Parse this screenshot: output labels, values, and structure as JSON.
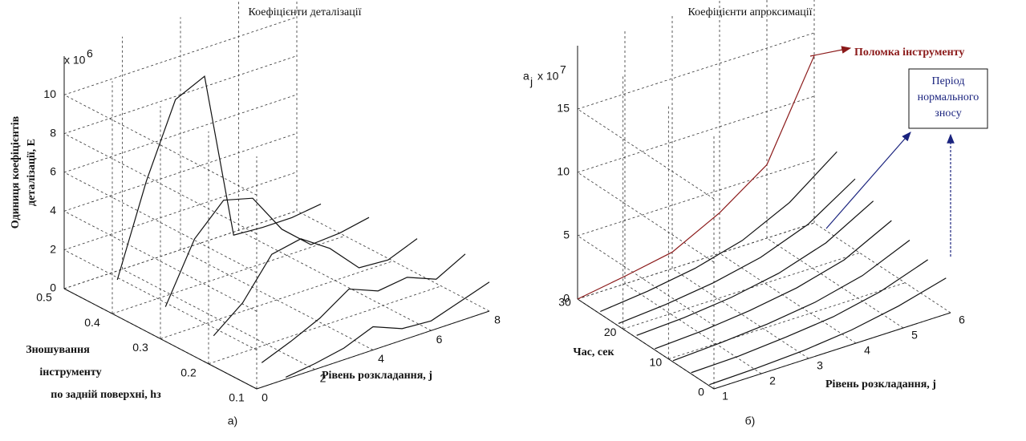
{
  "chart_data": [
    {
      "type": "line3d",
      "title": "Коефіцієнти деталізації",
      "caption": "а)",
      "zlabel": [
        "Одиниця коефіцієнтів",
        "деталізації, E"
      ],
      "ylabel": [
        "Зношування",
        "інструменту",
        "по задній поверхні, hз"
      ],
      "xlabel": "Рівень розкладання, j",
      "exponent": "x 10",
      "exponent_power": "6",
      "xlim": [
        0,
        8
      ],
      "ylim": [
        0.1,
        0.5
      ],
      "zlim": [
        0,
        12
      ],
      "xticks": [
        0,
        2,
        4,
        6,
        8
      ],
      "yticks": [
        0.1,
        0.2,
        0.3,
        0.4,
        0.5
      ],
      "zticks": [
        0,
        2,
        4,
        6,
        8,
        10
      ],
      "grid": true,
      "x": [
        1,
        2,
        3,
        4,
        5,
        6,
        7,
        8
      ],
      "series": [
        {
          "y": 0.45,
          "color": "#111111",
          "values": [
            0.6,
            5.2,
            8.9,
            9.6,
            0.9,
            0.8,
            0.8,
            1.0
          ]
        },
        {
          "y": 0.35,
          "color": "#111111",
          "values": [
            0.5,
            3.5,
            5,
            4.6,
            2.5,
            1.2,
            1.3,
            1.6
          ]
        },
        {
          "y": 0.25,
          "color": "#111111",
          "values": [
            0.3,
            1.5,
            3.5,
            3.8,
            2.8,
            1.3,
            1.2,
            1.8
          ]
        },
        {
          "y": 0.15,
          "color": "#111111",
          "values": [
            0.2,
            0.8,
            1.5,
            2.5,
            1.9,
            2.1,
            1.5,
            2.3
          ]
        },
        {
          "y": 0.1,
          "color": "#111111",
          "values": [
            0.1,
            0.3,
            0.6,
            1.2,
            0.6,
            0.5,
            1.0,
            1.5
          ]
        }
      ]
    },
    {
      "type": "line3d",
      "title": "Коефіцієнти апроксимації",
      "caption": "б)",
      "zlabel": "a",
      "zlabel_sub": "j",
      "ylabel": "Час, сек",
      "xlabel": "Рівень розкладання, j",
      "exponent": "x 10",
      "exponent_power": "7",
      "annotations": [
        "Поломка інструменту",
        "Період",
        "нормального",
        "зносу"
      ],
      "xlim": [
        1,
        6
      ],
      "ylim": [
        0,
        30
      ],
      "zlim": [
        0,
        20
      ],
      "xticks": [
        1,
        2,
        3,
        4,
        5,
        6
      ],
      "yticks": [
        0,
        10,
        20,
        30
      ],
      "zticks": [
        0,
        5,
        10,
        15
      ],
      "grid": true,
      "x": [
        1,
        2,
        3,
        4,
        5,
        6
      ],
      "series": [
        {
          "y": 30,
          "color": "#8b1a1a",
          "values": [
            0,
            0.6,
            1.3,
            3.2,
            5.8,
            13.2
          ]
        },
        {
          "y": 25,
          "color": "#111111",
          "values": [
            0.2,
            0.6,
            1.2,
            2.2,
            4,
            6.8
          ]
        },
        {
          "y": 21,
          "color": "#111111",
          "values": [
            0.2,
            0.5,
            1,
            1.8,
            3.2,
            5.6
          ]
        },
        {
          "y": 17,
          "color": "#111111",
          "values": [
            0.2,
            0.4,
            0.8,
            1.5,
            2.7,
            4.8
          ]
        },
        {
          "y": 13,
          "color": "#111111",
          "values": [
            0.1,
            0.3,
            0.7,
            1.3,
            2.3,
            4.2
          ]
        },
        {
          "y": 9,
          "color": "#111111",
          "values": [
            0.1,
            0.3,
            0.6,
            1.1,
            2,
            3.6
          ]
        },
        {
          "y": 5,
          "color": "#111111",
          "values": [
            0.1,
            0.2,
            0.5,
            0.9,
            1.7,
            3
          ]
        },
        {
          "y": 1,
          "color": "#111111",
          "values": [
            0.1,
            0.2,
            0.4,
            0.8,
            1.5,
            2.5
          ]
        }
      ]
    }
  ]
}
